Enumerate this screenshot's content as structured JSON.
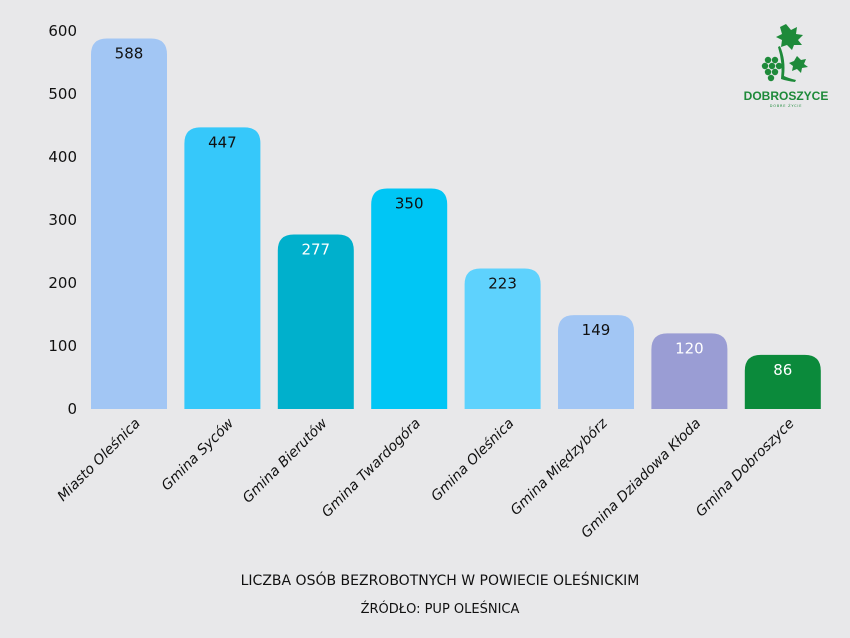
{
  "chart_data": {
    "type": "bar",
    "title": "LICZBA OSÓB BEZROBOTNYCH W POWIECIE OLEŚNICKIM",
    "source": "ŹRÓDŁO: PUP OLEŚNICA",
    "xlabel": "",
    "ylabel": "",
    "ylim": [
      0,
      600
    ],
    "yticks": [
      0,
      100,
      200,
      300,
      400,
      500,
      600
    ],
    "grid": false,
    "categories": [
      "Miasto Oleśnica",
      "Gmina Syców",
      "Gmina Bierutów",
      "Gmina Twardogóra",
      "Gmina Oleśnica",
      "Gmina Międzybórz",
      "Gmina Dziadowa Kłoda",
      "Gmina Dobroszyce"
    ],
    "values": [
      588,
      447,
      277,
      350,
      223,
      149,
      120,
      86
    ],
    "colors": [
      "#a2c6f4",
      "#36c8fa",
      "#00b0cc",
      "#00c6f5",
      "#5ed2fd",
      "#a2c6f4",
      "#9a9dd4",
      "#0b8a3b"
    ],
    "label_colors": [
      "#111111",
      "#111111",
      "#ffffff",
      "#111111",
      "#111111",
      "#111111",
      "#ffffff",
      "#ffffff"
    ]
  },
  "logo": {
    "name": "DOBROSZYCE",
    "tagline": "DOBRE ŻYCIE",
    "color": "#1e8a3a"
  }
}
